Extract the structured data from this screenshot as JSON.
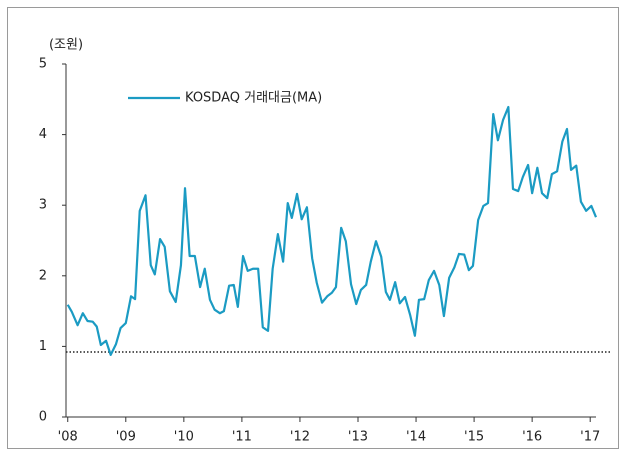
{
  "chart_data": {
    "type": "line",
    "y_axis_label": "(조원)",
    "x": [
      2008.0,
      2008.07,
      2008.17,
      2008.26,
      2008.34,
      2008.43,
      2008.5,
      2008.57,
      2008.66,
      2008.74,
      2008.83,
      2008.91,
      2009.0,
      2009.09,
      2009.16,
      2009.24,
      2009.34,
      2009.43,
      2009.5,
      2009.59,
      2009.67,
      2009.76,
      2009.86,
      2009.95,
      2010.02,
      2010.1,
      2010.19,
      2010.28,
      2010.36,
      2010.45,
      2010.53,
      2010.62,
      2010.69,
      2010.78,
      2010.86,
      2010.93,
      2011.02,
      2011.1,
      2011.19,
      2011.28,
      2011.36,
      2011.45,
      2011.53,
      2011.62,
      2011.71,
      2011.79,
      2011.86,
      2011.95,
      2012.03,
      2012.12,
      2012.21,
      2012.29,
      2012.38,
      2012.47,
      2012.55,
      2012.62,
      2012.71,
      2012.79,
      2012.88,
      2012.97,
      2013.05,
      2013.14,
      2013.22,
      2013.31,
      2013.4,
      2013.48,
      2013.55,
      2013.64,
      2013.72,
      2013.81,
      2013.9,
      2013.98,
      2014.05,
      2014.14,
      2014.22,
      2014.31,
      2014.4,
      2014.48,
      2014.57,
      2014.66,
      2014.74,
      2014.83,
      2014.91,
      2014.98,
      2015.07,
      2015.16,
      2015.24,
      2015.33,
      2015.41,
      2015.5,
      2015.59,
      2015.67,
      2015.76,
      2015.84,
      2015.93,
      2016.0,
      2016.09,
      2016.17,
      2016.26,
      2016.34,
      2016.43,
      2016.52,
      2016.6,
      2016.67,
      2016.76,
      2016.84,
      2016.93,
      2017.02,
      2017.1
    ],
    "series": [
      {
        "name": "KOSDAQ 거래대금(MA)",
        "color": "#1b9bc3",
        "values": [
          1.59,
          1.49,
          1.3,
          1.47,
          1.36,
          1.35,
          1.28,
          1.02,
          1.08,
          0.88,
          1.03,
          1.26,
          1.33,
          1.71,
          1.67,
          2.92,
          3.14,
          2.15,
          2.02,
          2.52,
          2.41,
          1.78,
          1.63,
          2.15,
          3.24,
          2.28,
          2.28,
          1.84,
          2.1,
          1.66,
          1.52,
          1.47,
          1.5,
          1.86,
          1.87,
          1.56,
          2.28,
          2.07,
          2.1,
          2.1,
          1.27,
          1.22,
          2.1,
          2.59,
          2.2,
          3.03,
          2.82,
          3.16,
          2.8,
          2.97,
          2.25,
          1.9,
          1.62,
          1.71,
          1.76,
          1.84,
          2.68,
          2.49,
          1.88,
          1.6,
          1.8,
          1.87,
          2.2,
          2.49,
          2.27,
          1.77,
          1.66,
          1.91,
          1.61,
          1.7,
          1.44,
          1.15,
          1.66,
          1.67,
          1.94,
          2.07,
          1.87,
          1.43,
          1.97,
          2.12,
          2.31,
          2.3,
          2.08,
          2.14,
          2.79,
          2.99,
          3.03,
          4.29,
          3.92,
          4.21,
          4.39,
          3.23,
          3.2,
          3.4,
          3.57,
          3.17,
          3.53,
          3.17,
          3.1,
          3.44,
          3.48,
          3.9,
          4.08,
          3.5,
          3.56,
          3.05,
          2.92,
          2.99,
          2.83
        ]
      }
    ],
    "reference_line": 0.92,
    "xlim": [
      2007.97,
      2017.1
    ],
    "xticks": [
      {
        "value": 2008,
        "label": "'08"
      },
      {
        "value": 2009,
        "label": "'09"
      },
      {
        "value": 2010,
        "label": "'10"
      },
      {
        "value": 2011,
        "label": "'11"
      },
      {
        "value": 2012,
        "label": "'12"
      },
      {
        "value": 2013,
        "label": "'13"
      },
      {
        "value": 2014,
        "label": "'14"
      },
      {
        "value": 2015,
        "label": "'15"
      },
      {
        "value": 2016,
        "label": "'16"
      },
      {
        "value": 2017,
        "label": "'17"
      }
    ],
    "ylim": [
      0,
      5
    ],
    "yticks": [
      0,
      1,
      2,
      3,
      4,
      5
    ],
    "legend": "top-left"
  }
}
